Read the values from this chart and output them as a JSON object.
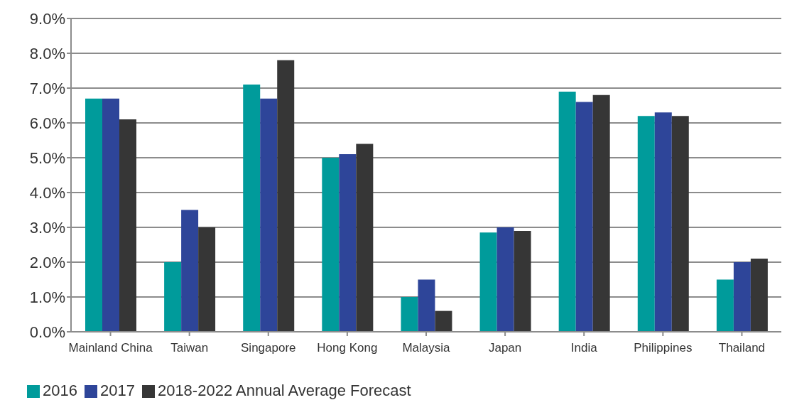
{
  "chart_data": {
    "type": "bar",
    "categories": [
      "Mainland China",
      "Taiwan",
      "Singapore",
      "Hong Kong",
      "Malaysia",
      "Japan",
      "India",
      "Philippines",
      "Thailand"
    ],
    "series": [
      {
        "name": "2016",
        "color": "#009b9b",
        "values": [
          6.7,
          2.0,
          7.1,
          5.0,
          1.0,
          2.85,
          6.9,
          6.2,
          1.5
        ]
      },
      {
        "name": "2017",
        "color": "#2e4599",
        "values": [
          6.7,
          3.5,
          6.7,
          5.1,
          1.5,
          3.0,
          6.6,
          6.3,
          2.0
        ]
      },
      {
        "name": "2018-2022 Annual Average Forecast",
        "color": "#363636",
        "values": [
          6.1,
          3.0,
          7.8,
          5.4,
          0.6,
          2.9,
          6.8,
          6.2,
          2.1
        ]
      }
    ],
    "ylim": [
      0,
      9
    ],
    "yticks": [
      {
        "value": 0,
        "label": "0.0%"
      },
      {
        "value": 1,
        "label": "1.0%"
      },
      {
        "value": 2,
        "label": "2.0%"
      },
      {
        "value": 3,
        "label": "3.0%"
      },
      {
        "value": 4,
        "label": "4.0%"
      },
      {
        "value": 5,
        "label": "5.0%"
      },
      {
        "value": 6,
        "label": "6.0%"
      },
      {
        "value": 7,
        "label": "7.0%"
      },
      {
        "value": 8,
        "label": "8.0%"
      },
      {
        "value": 9,
        "label": "9.0%"
      }
    ],
    "grid": "y",
    "legend": "bottom left"
  }
}
